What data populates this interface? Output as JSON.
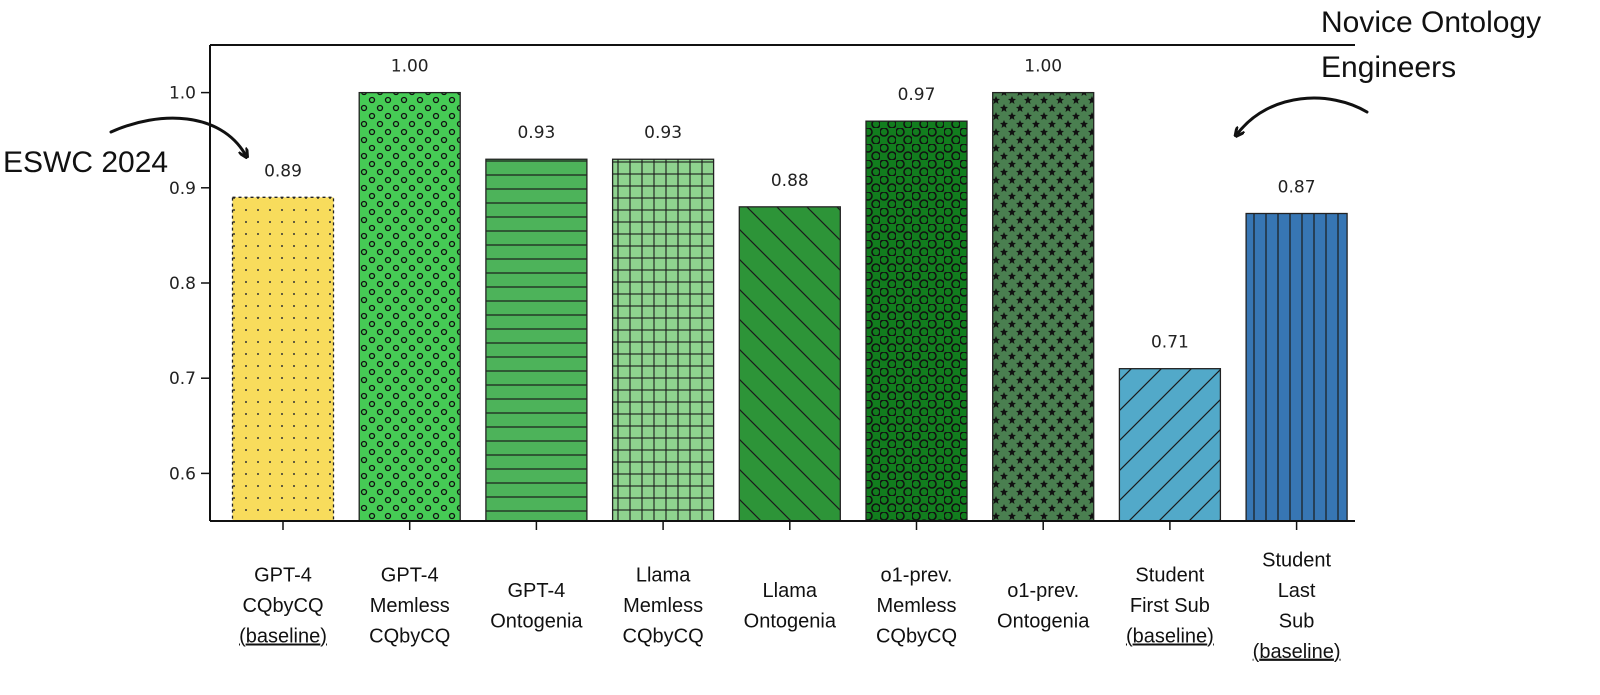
{
  "chart_data": {
    "type": "bar",
    "categories": [
      [
        "GPT-4",
        "CQbyCQ",
        "(baseline)"
      ],
      [
        "GPT-4",
        "Memless",
        "CQbyCQ"
      ],
      [
        "GPT-4",
        "Ontogenia"
      ],
      [
        "Llama",
        "Memless",
        "CQbyCQ"
      ],
      [
        "Llama",
        "Ontogenia"
      ],
      [
        "o1-prev.",
        "Memless",
        "CQbyCQ"
      ],
      [
        "o1-prev.",
        "Ontogenia"
      ],
      [
        "Student",
        "First Sub",
        "(baseline)"
      ],
      [
        "Student",
        "Last",
        "Sub",
        "(baseline)"
      ]
    ],
    "values": [
      0.89,
      1.0,
      0.93,
      0.93,
      0.88,
      0.97,
      1.0,
      0.71,
      0.873
    ],
    "value_labels": [
      "0.89",
      "1.00",
      "0.93",
      "0.93",
      "0.88",
      "0.97",
      "1.00",
      "0.71",
      "0.87"
    ],
    "colors": [
      "#f8dc5c",
      "#46cb55",
      "#4db35a",
      "#8fd38f",
      "#2d9438",
      "#127d1e",
      "#4a7f50",
      "#52a9c9",
      "#3776b4"
    ],
    "patterns": [
      "dots-small",
      "circles",
      "hlines",
      "grid",
      "diag-back",
      "rings",
      "stars",
      "diag-fwd",
      "vlines"
    ],
    "ylim": [
      0.55,
      1.05
    ],
    "yticks": [
      0.6,
      0.7,
      0.8,
      0.9,
      1.0
    ],
    "ytick_labels": [
      "0.6",
      "0.7",
      "0.8",
      "0.9",
      "1.0"
    ],
    "title": "",
    "xlabel": "",
    "ylabel": "",
    "annotations": {
      "left": "ESWC 2024",
      "right": [
        "Novice Ontology",
        "Engineers"
      ]
    }
  }
}
